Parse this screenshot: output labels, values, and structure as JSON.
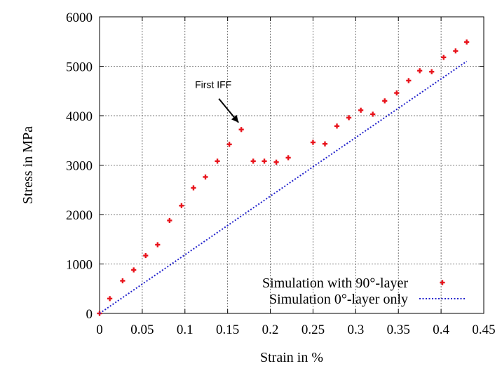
{
  "chart_data": {
    "type": "scatter",
    "xlabel": "Strain in %",
    "ylabel": "Stress in MPa",
    "xlim": [
      0,
      0.45
    ],
    "ylim": [
      0,
      6000
    ],
    "x_ticks": [
      "0",
      "0.05",
      "0.1",
      "0.15",
      "0.2",
      "0.25",
      "0.3",
      "0.35",
      "0.4",
      "0.45"
    ],
    "y_ticks": [
      "0",
      "1000",
      "2000",
      "3000",
      "4000",
      "5000",
      "6000"
    ],
    "grid": true,
    "legend_position": "bottom-right",
    "series": [
      {
        "name": "Simulation with 90°-layer",
        "style": "points",
        "color": "#e8141c",
        "x": [
          0,
          0.012,
          0.027,
          0.04,
          0.054,
          0.068,
          0.082,
          0.096,
          0.11,
          0.124,
          0.138,
          0.152,
          0.166,
          0.18,
          0.193,
          0.207,
          0.221,
          0.25,
          0.264,
          0.278,
          0.292,
          0.306,
          0.32,
          0.334,
          0.348,
          0.362,
          0.375,
          0.389,
          0.403,
          0.417,
          0.43
        ],
        "y": [
          0,
          300,
          660,
          880,
          1170,
          1390,
          1880,
          2180,
          2540,
          2760,
          3080,
          3420,
          3720,
          3080,
          3080,
          3060,
          3150,
          3460,
          3430,
          3790,
          3960,
          4110,
          4030,
          4300,
          4460,
          4710,
          4910,
          4890,
          5180,
          5310,
          5490
        ]
      },
      {
        "name": "Simulation 0°-layer only",
        "style": "dotted-line",
        "color": "#2222cc",
        "x": [
          0,
          0.43
        ],
        "y": [
          0,
          5100
        ]
      }
    ],
    "annotations": [
      {
        "text": "First IFF",
        "x": 0.166,
        "y": 3720
      }
    ]
  }
}
